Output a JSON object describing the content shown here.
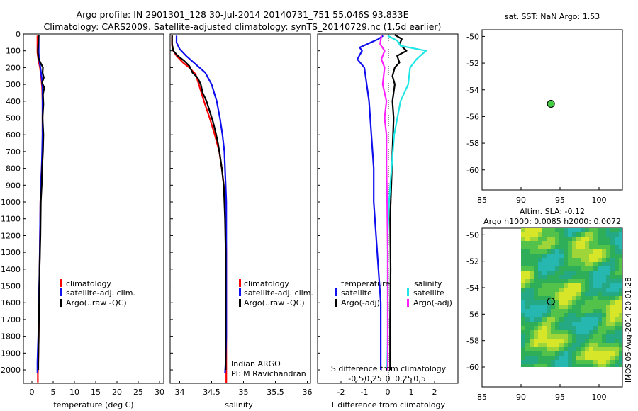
{
  "header": {
    "line1": "Argo profile: IN 2901301_128 30-Jul-2014 20140731_751 55.046S 93.833E",
    "line2": "Climatology: CARS2009. Satellite-adjusted climatology: synTS_20140729.nc (1.5d earlier)"
  },
  "colors": {
    "red": "#ff0000",
    "blue": "#1010ee",
    "black": "#000000",
    "cyan": "#20e6e6",
    "magenta": "#ff20ff",
    "green": "#44cc44"
  },
  "chart_data": [
    {
      "id": "temperature",
      "type": "line",
      "xlabel": "temperature (deg C)",
      "xlim": [
        -2,
        31
      ],
      "xticks": [
        "0",
        "5",
        "10",
        "15",
        "20",
        "25",
        "30"
      ],
      "ylim": [
        0,
        2080
      ],
      "yticks": [
        "0",
        "100",
        "200",
        "300",
        "400",
        "500",
        "600",
        "700",
        "800",
        "900",
        "1000",
        "1100",
        "1200",
        "1300",
        "1400",
        "1500",
        "1600",
        "1700",
        "1800",
        "1900",
        "2000"
      ],
      "legend": [
        "climatology",
        "satellite-adj. clim.",
        "Argo(..raw -QC)"
      ],
      "series": [
        {
          "name": "climatology",
          "color": "red",
          "points": [
            [
              1.3,
              10
            ],
            [
              1.3,
              80
            ],
            [
              1.3,
              110
            ],
            [
              1.5,
              150
            ],
            [
              1.9,
              200
            ],
            [
              2.2,
              260
            ],
            [
              2.4,
              320
            ],
            [
              2.5,
              400
            ],
            [
              2.5,
              500
            ],
            [
              2.5,
              600
            ],
            [
              2.5,
              700
            ],
            [
              2.3,
              800
            ],
            [
              2.1,
              900
            ],
            [
              2.0,
              1000
            ],
            [
              1.9,
              1200
            ],
            [
              1.8,
              1400
            ],
            [
              1.7,
              1600
            ],
            [
              1.6,
              1800
            ],
            [
              1.5,
              1950
            ],
            [
              1.4,
              2020
            ],
            [
              1.4,
              2075
            ]
          ]
        },
        {
          "name": "satellite-adj. clim.",
          "color": "blue",
          "points": [
            [
              1.6,
              10
            ],
            [
              1.6,
              80
            ],
            [
              1.6,
              110
            ],
            [
              1.7,
              150
            ],
            [
              2.0,
              200
            ],
            [
              2.3,
              260
            ],
            [
              2.5,
              320
            ],
            [
              2.5,
              400
            ],
            [
              2.5,
              500
            ],
            [
              2.5,
              600
            ],
            [
              2.4,
              700
            ],
            [
              2.3,
              800
            ],
            [
              2.1,
              900
            ],
            [
              2.0,
              1000
            ],
            [
              1.9,
              1200
            ],
            [
              1.8,
              1400
            ],
            [
              1.6,
              1600
            ],
            [
              1.5,
              1800
            ],
            [
              1.3,
              1950
            ],
            [
              1.3,
              2020
            ]
          ]
        },
        {
          "name": "Argo",
          "color": "black",
          "points": [
            [
              1.6,
              5
            ],
            [
              1.5,
              60
            ],
            [
              1.4,
              100
            ],
            [
              1.5,
              140
            ],
            [
              2.0,
              170
            ],
            [
              2.6,
              200
            ],
            [
              2.5,
              230
            ],
            [
              2.8,
              260
            ],
            [
              2.4,
              290
            ],
            [
              2.9,
              320
            ],
            [
              2.6,
              360
            ],
            [
              2.7,
              420
            ],
            [
              2.5,
              500
            ],
            [
              2.7,
              600
            ],
            [
              2.6,
              700
            ],
            [
              2.4,
              800
            ],
            [
              2.3,
              900
            ],
            [
              2.1,
              1000
            ],
            [
              2.0,
              1200
            ],
            [
              1.8,
              1400
            ],
            [
              1.7,
              1600
            ],
            [
              1.6,
              1800
            ],
            [
              1.5,
              1950
            ],
            [
              1.5,
              2000
            ]
          ]
        }
      ]
    },
    {
      "id": "salinity",
      "type": "line",
      "xlabel": "salinity",
      "xlim": [
        33.85,
        36.05
      ],
      "xticks": [
        "34",
        "34.5",
        "35",
        "35.5",
        "36"
      ],
      "ylim": [
        0,
        2080
      ],
      "legend": [
        "climatology",
        "satellite-adj. clim.",
        "Argo(..raw -QC)"
      ],
      "annotation": [
        "Indian ARGO",
        "PI: M Ravichandran"
      ],
      "series": [
        {
          "name": "climatology",
          "color": "red",
          "points": [
            [
              33.88,
              10
            ],
            [
              33.88,
              70
            ],
            [
              33.9,
              100
            ],
            [
              33.95,
              130
            ],
            [
              34.05,
              170
            ],
            [
              34.15,
              200
            ],
            [
              34.25,
              240
            ],
            [
              34.3,
              300
            ],
            [
              34.38,
              400
            ],
            [
              34.47,
              500
            ],
            [
              34.55,
              600
            ],
            [
              34.62,
              700
            ],
            [
              34.66,
              800
            ],
            [
              34.69,
              900
            ],
            [
              34.71,
              1000
            ],
            [
              34.72,
              1100
            ],
            [
              34.73,
              1300
            ],
            [
              34.73,
              1600
            ],
            [
              34.73,
              1900
            ],
            [
              34.73,
              2080
            ]
          ]
        },
        {
          "name": "satellite-adj. clim.",
          "color": "blue",
          "points": [
            [
              33.95,
              10
            ],
            [
              33.95,
              50
            ],
            [
              34.0,
              90
            ],
            [
              34.1,
              130
            ],
            [
              34.25,
              180
            ],
            [
              34.4,
              230
            ],
            [
              34.5,
              300
            ],
            [
              34.58,
              400
            ],
            [
              34.63,
              500
            ],
            [
              34.67,
              600
            ],
            [
              34.7,
              700
            ],
            [
              34.71,
              800
            ],
            [
              34.72,
              900
            ],
            [
              34.73,
              1000
            ],
            [
              34.73,
              1200
            ],
            [
              34.73,
              1500
            ],
            [
              34.73,
              1800
            ],
            [
              34.72,
              1950
            ],
            [
              34.71,
              2020
            ]
          ]
        },
        {
          "name": "Argo",
          "color": "black",
          "points": [
            [
              33.88,
              5
            ],
            [
              33.88,
              60
            ],
            [
              33.9,
              100
            ],
            [
              33.97,
              130
            ],
            [
              34.07,
              160
            ],
            [
              34.15,
              190
            ],
            [
              34.2,
              230
            ],
            [
              34.28,
              260
            ],
            [
              34.33,
              300
            ],
            [
              34.36,
              350
            ],
            [
              34.42,
              400
            ],
            [
              34.47,
              460
            ],
            [
              34.52,
              520
            ],
            [
              34.56,
              580
            ],
            [
              34.6,
              650
            ],
            [
              34.63,
              720
            ],
            [
              34.66,
              800
            ],
            [
              34.69,
              900
            ],
            [
              34.7,
              1000
            ],
            [
              34.71,
              1100
            ],
            [
              34.72,
              1300
            ],
            [
              34.72,
              1600
            ],
            [
              34.72,
              1900
            ],
            [
              34.72,
              2000
            ]
          ]
        }
      ]
    },
    {
      "id": "difference",
      "type": "line",
      "xlabel": "T difference from climatology",
      "xlabel2": "S difference from climatology",
      "xlim": [
        -3,
        3
      ],
      "xticks": [
        "-2",
        "-1",
        "0",
        "1",
        "2"
      ],
      "xlim2": [
        -1.1,
        1.1
      ],
      "xticks2": [
        "-0.5",
        "-0.25",
        "0",
        "0.25",
        "0.5"
      ],
      "ylim": [
        0,
        2080
      ],
      "legend_left_title": "temperature",
      "legend_right_title": "salinity",
      "legend_left": [
        "satellite",
        "Argo(-adj)"
      ],
      "legend_right": [
        "satellite",
        "Argo(-adj)"
      ],
      "series": [
        {
          "name": "temperature satellite",
          "color": "blue",
          "axis": "T",
          "points": [
            [
              -0.2,
              10
            ],
            [
              -0.4,
              30
            ],
            [
              -1.2,
              80
            ],
            [
              -1.1,
              100
            ],
            [
              -1.3,
              150
            ],
            [
              -1.0,
              200
            ],
            [
              -0.9,
              300
            ],
            [
              -0.8,
              400
            ],
            [
              -0.7,
              600
            ],
            [
              -0.6,
              800
            ],
            [
              -0.6,
              1000
            ],
            [
              -0.5,
              1200
            ],
            [
              -0.4,
              1400
            ],
            [
              -0.3,
              1600
            ],
            [
              -0.3,
              1800
            ],
            [
              -0.3,
              2000
            ]
          ]
        },
        {
          "name": "temperature Argo",
          "color": "black",
          "axis": "T",
          "points": [
            [
              0.3,
              5
            ],
            [
              0.6,
              30
            ],
            [
              0.5,
              60
            ],
            [
              0.8,
              100
            ],
            [
              0.4,
              130
            ],
            [
              0.5,
              170
            ],
            [
              0.3,
              200
            ],
            [
              0.2,
              250
            ],
            [
              0.3,
              300
            ],
            [
              0.2,
              400
            ],
            [
              0.25,
              500
            ],
            [
              0.2,
              700
            ],
            [
              0.15,
              900
            ],
            [
              0.1,
              1100
            ],
            [
              0.12,
              1400
            ],
            [
              0.1,
              1700
            ],
            [
              0.1,
              2000
            ]
          ]
        },
        {
          "name": "salinity satellite",
          "color": "cyan",
          "axis": "S",
          "points": [
            [
              0.0,
              10
            ],
            [
              0.15,
              40
            ],
            [
              0.2,
              70
            ],
            [
              0.6,
              100
            ],
            [
              0.45,
              150
            ],
            [
              0.35,
              200
            ],
            [
              0.32,
              300
            ],
            [
              0.2,
              400
            ],
            [
              0.15,
              500
            ],
            [
              0.1,
              600
            ],
            [
              0.08,
              700
            ],
            [
              0.06,
              800
            ],
            [
              0.04,
              900
            ],
            [
              0.02,
              1000
            ],
            [
              0.0,
              1200
            ],
            [
              0.0,
              1500
            ],
            [
              0.0,
              1800
            ],
            [
              -0.01,
              2000
            ]
          ]
        },
        {
          "name": "salinity Argo",
          "color": "magenta",
          "axis": "S",
          "points": [
            [
              -0.1,
              10
            ],
            [
              -0.12,
              60
            ],
            [
              -0.05,
              100
            ],
            [
              -0.1,
              150
            ],
            [
              -0.05,
              200
            ],
            [
              -0.08,
              300
            ],
            [
              -0.02,
              400
            ],
            [
              -0.05,
              500
            ],
            [
              -0.02,
              600
            ],
            [
              -0.02,
              800
            ],
            [
              -0.01,
              1000
            ],
            [
              0.0,
              1300
            ],
            [
              0.0,
              1600
            ],
            [
              0.0,
              2000
            ]
          ]
        }
      ]
    },
    {
      "id": "sst_map",
      "type": "scatter",
      "title": "sat. SST: NaN Argo: 1.53",
      "xlim": [
        85,
        103
      ],
      "xticks": [
        "85",
        "90",
        "95",
        "100"
      ],
      "ylim": [
        -61.5,
        -49.5
      ],
      "yticks": [
        "-50",
        "-52",
        "-54",
        "-56",
        "-58",
        "-60"
      ],
      "points": [
        [
          93.833,
          -55.046
        ]
      ]
    },
    {
      "id": "sla_map",
      "type": "heatmap",
      "title": "Altim. SLA: -0.12",
      "subtitle": "Argo h1000: 0.0085 h2000: 0.0072",
      "xlim": [
        85,
        103
      ],
      "xticks": [
        "85",
        "90",
        "95",
        "100"
      ],
      "ylim": [
        -61.5,
        -49.5
      ],
      "yticks": [
        "-50",
        "-52",
        "-54",
        "-56",
        "-58",
        "-60"
      ],
      "data_extent": {
        "lon": [
          90,
          103
        ],
        "lat": [
          -60,
          -49.5
        ]
      },
      "points": [
        [
          93.833,
          -55.046
        ]
      ]
    }
  ],
  "footer": {
    "timestamp": "IMOS 05-Aug-2014 20:01:28"
  }
}
